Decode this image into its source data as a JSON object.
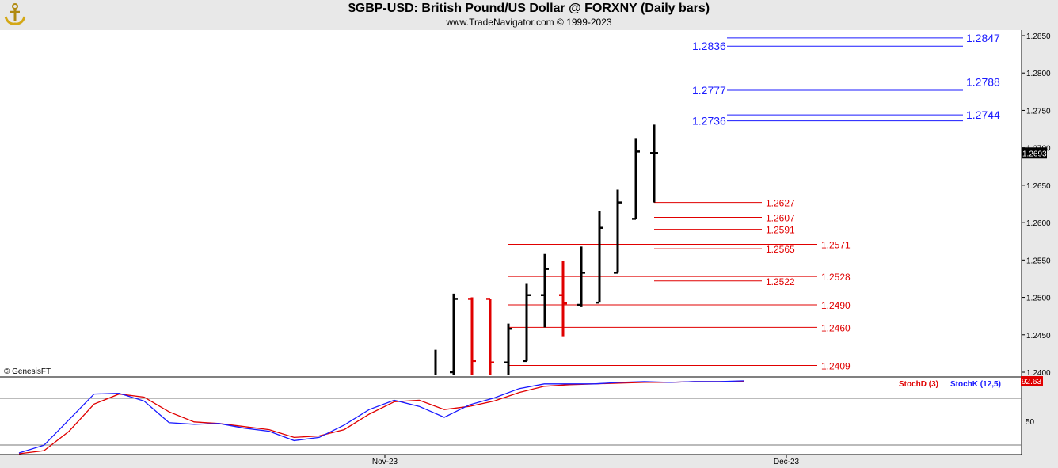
{
  "header": {
    "title": "$GBP-USD:  British Pound/US Dollar @ FORXNY  (Daily bars)",
    "subtitle": "www.TradeNavigator.com © 1999-2023"
  },
  "watermark": "© GenesisFT",
  "colors": {
    "background": "#ffffff",
    "header": "#e8e8e8",
    "axis_panel": "#e8e8e8",
    "up_bar": "#000000",
    "down_bar": "#e00000",
    "resistance": "#1a1aff",
    "support": "#e00000",
    "stoch_d": "#e00000",
    "stoch_k": "#1a1aff"
  },
  "chart_data": {
    "type": "ohlc",
    "y_axis": {
      "ticks": [
        "1.2400",
        "1.2450",
        "1.2500",
        "1.2550",
        "1.2600",
        "1.2650",
        "1.2700",
        "1.2750",
        "1.2800",
        "1.2850"
      ],
      "ylim": [
        1.2395,
        1.2864
      ],
      "last_price_label": "1.2693"
    },
    "x_axis": {
      "labels": [
        {
          "text": "Nov-23",
          "bar_index": 12
        },
        {
          "text": "Dec-23",
          "bar_index": 34
        }
      ]
    },
    "bars": [
      {
        "high": 1.243,
        "low": 1.2395,
        "open": null,
        "close": null,
        "dir": "up"
      },
      {
        "high": 1.2505,
        "low": 1.2395,
        "open": 1.24,
        "close": 1.2498,
        "dir": "up"
      },
      {
        "high": 1.25,
        "low": 1.2395,
        "open": 1.2498,
        "close": 1.2415,
        "dir": "down"
      },
      {
        "high": 1.2498,
        "low": 1.2395,
        "open": 1.2498,
        "close": 1.2413,
        "dir": "down"
      },
      {
        "high": 1.2465,
        "low": 1.2395,
        "open": 1.2413,
        "close": 1.2458,
        "dir": "up"
      },
      {
        "high": 1.2518,
        "low": 1.2415,
        "open": 1.2415,
        "close": 1.2503,
        "dir": "up"
      },
      {
        "high": 1.2558,
        "low": 1.246,
        "open": 1.2503,
        "close": 1.2538,
        "dir": "up"
      },
      {
        "high": 1.2549,
        "low": 1.2448,
        "open": 1.2503,
        "close": 1.2492,
        "dir": "down"
      },
      {
        "high": 1.2568,
        "low": 1.2487,
        "open": 1.249,
        "close": 1.2533,
        "dir": "up"
      },
      {
        "high": 1.2616,
        "low": 1.2493,
        "open": 1.2493,
        "close": 1.2593,
        "dir": "up"
      },
      {
        "high": 1.2644,
        "low": 1.2533,
        "open": 1.2533,
        "close": 1.2627,
        "dir": "up"
      },
      {
        "high": 1.2713,
        "low": 1.2605,
        "open": 1.2605,
        "close": 1.2695,
        "dir": "up"
      },
      {
        "high": 1.2731,
        "low": 1.2627,
        "open": 1.2693,
        "close": 1.2693,
        "dir": "up"
      }
    ],
    "resistance_levels": [
      {
        "value": 1.2847,
        "label": "1.2847",
        "side": "right"
      },
      {
        "value": 1.2836,
        "label": "1.2836",
        "side": "left"
      },
      {
        "value": 1.2788,
        "label": "1.2788",
        "side": "right"
      },
      {
        "value": 1.2777,
        "label": "1.2777",
        "side": "left"
      },
      {
        "value": 1.2744,
        "label": "1.2744",
        "side": "right"
      },
      {
        "value": 1.2736,
        "label": "1.2736",
        "side": "left"
      }
    ],
    "support_levels": [
      {
        "value": 1.2627,
        "label": "1.2627",
        "group": "short"
      },
      {
        "value": 1.2607,
        "label": "1.2607",
        "group": "short"
      },
      {
        "value": 1.2591,
        "label": "1.2591",
        "group": "short"
      },
      {
        "value": 1.2571,
        "label": "1.2571",
        "group": "long"
      },
      {
        "value": 1.2565,
        "label": "1.2565",
        "group": "short"
      },
      {
        "value": 1.2528,
        "label": "1.2528",
        "group": "long"
      },
      {
        "value": 1.2522,
        "label": "1.2522",
        "group": "short"
      },
      {
        "value": 1.249,
        "label": "1.2490",
        "group": "long"
      },
      {
        "value": 1.246,
        "label": "1.2460",
        "group": "long"
      },
      {
        "value": 1.2409,
        "label": "1.2409",
        "group": "long"
      }
    ],
    "stochastic": {
      "legend_d": "StochD (3)",
      "legend_k": "StochK (12,5)",
      "last_value_label": "92.63",
      "tick_labels": [
        "50"
      ],
      "ylim": [
        0,
        100
      ],
      "k_values": [
        2,
        12,
        45,
        78,
        79,
        69,
        41,
        39,
        40,
        34,
        30,
        18,
        22,
        38,
        58,
        70,
        62,
        48,
        64,
        73,
        85,
        91,
        91,
        91,
        93,
        94,
        93,
        94,
        94,
        95
      ],
      "d_values": [
        1,
        5,
        30,
        65,
        78,
        74,
        55,
        42,
        40,
        36,
        32,
        22,
        24,
        32,
        52,
        68,
        70,
        58,
        62,
        69,
        80,
        88,
        90,
        91,
        92,
        93,
        93,
        94,
        94,
        94
      ]
    }
  }
}
